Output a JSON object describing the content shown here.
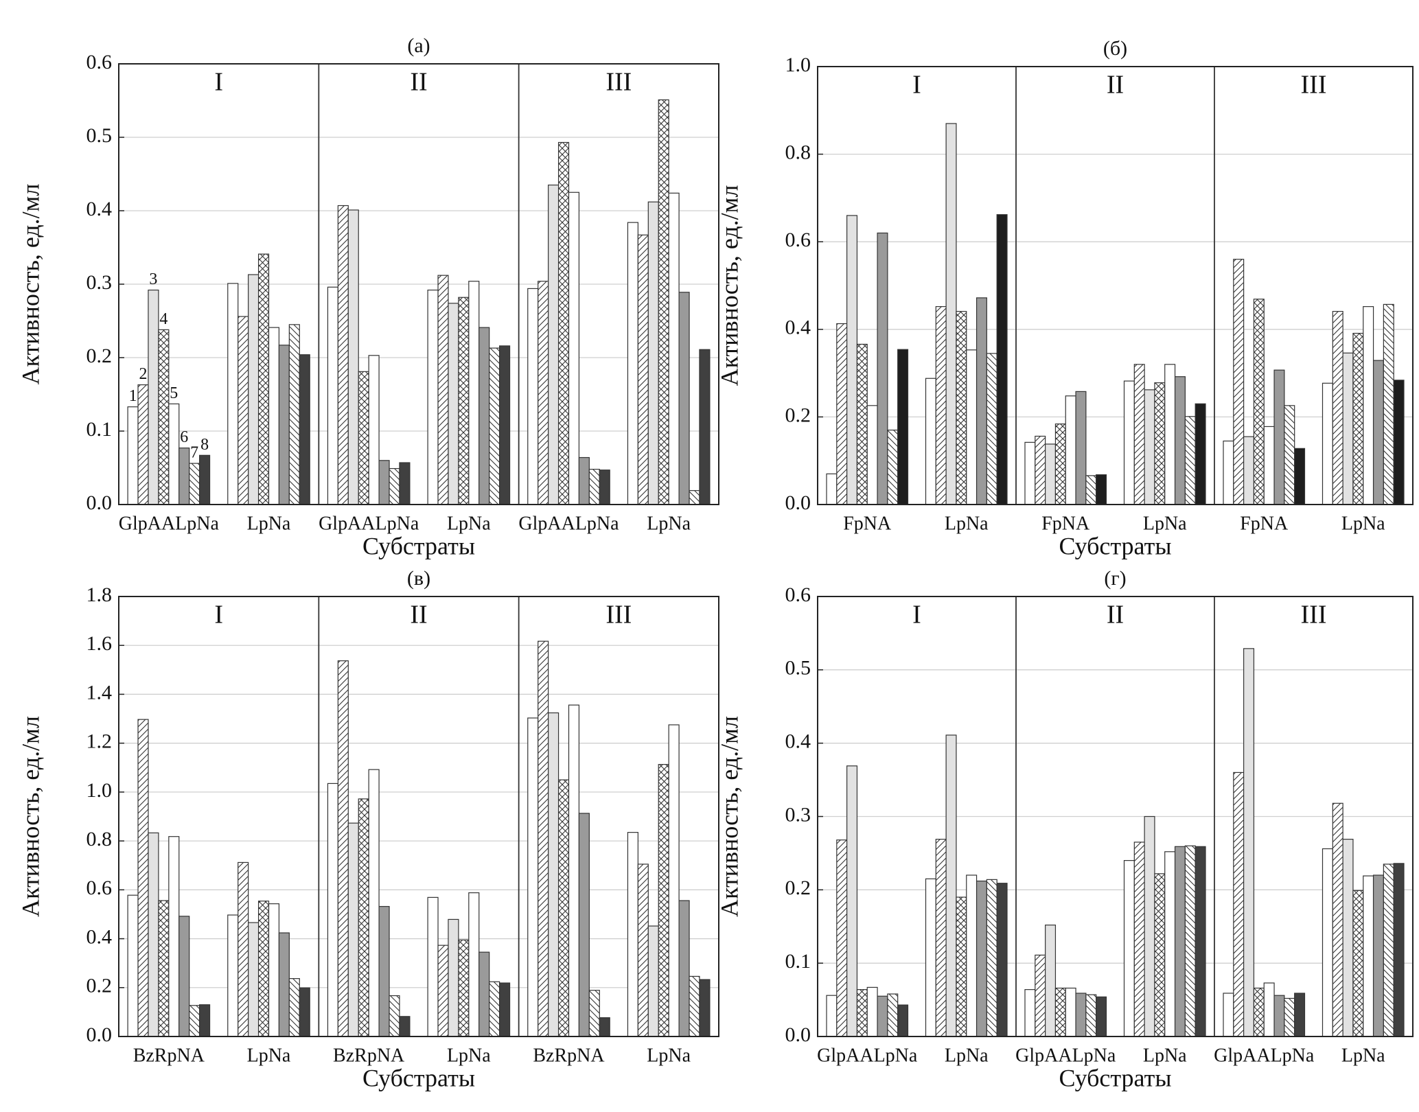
{
  "chart_data": [
    {
      "type": "bar",
      "title": "(a)",
      "xlabel": "Субстраты",
      "ylabel": "Активность, ед./мл",
      "groups": [
        "I",
        "II",
        "III"
      ],
      "categories": [
        "GlpAALpNa",
        "LpNa",
        "GlpAALpNa",
        "LpNa",
        "GlpAALpNa",
        "LpNa"
      ],
      "ylim": [
        0,
        0.6
      ],
      "yticks": [
        {
          "value": 0,
          "label": "0.0"
        },
        0.1,
        0.2,
        0.3,
        0.4,
        0.5,
        0.6
      ],
      "grid": true,
      "series": [
        {
          "name": "1",
          "color": "#ffffff",
          "hatch": "none",
          "values": [
            0.133,
            0.301,
            0.296,
            0.292,
            0.294,
            0.384
          ]
        },
        {
          "name": "2",
          "color": "#ffffff",
          "hatch": "/",
          "values": [
            0.163,
            0.256,
            0.407,
            0.312,
            0.304,
            0.367
          ]
        },
        {
          "name": "3",
          "color": "#e2e2e2",
          "hatch": "none",
          "values": [
            0.292,
            0.313,
            0.401,
            0.274,
            0.435,
            0.412
          ]
        },
        {
          "name": "4",
          "color": "#ffffff",
          "hatch": "x",
          "values": [
            0.238,
            0.341,
            0.181,
            0.282,
            0.493,
            0.551
          ]
        },
        {
          "name": "5",
          "color": "#ffffff",
          "hatch": "none",
          "values": [
            0.137,
            0.241,
            0.203,
            0.304,
            0.425,
            0.424
          ]
        },
        {
          "name": "6",
          "color": "#9a9a9a",
          "hatch": "none",
          "values": [
            0.077,
            0.217,
            0.06,
            0.241,
            0.064,
            0.289
          ]
        },
        {
          "name": "7",
          "color": "#ffffff",
          "hatch": "\\",
          "values": [
            0.056,
            0.245,
            0.049,
            0.213,
            0.048,
            0.019
          ]
        },
        {
          "name": "8",
          "color": "#404040",
          "hatch": "none",
          "values": [
            0.067,
            0.204,
            0.057,
            0.216,
            0.047,
            0.211
          ]
        }
      ]
    },
    {
      "type": "bar",
      "title": "(б)",
      "xlabel": "Субстраты",
      "ylabel": "Активность, ед./мл",
      "groups": [
        "I",
        "II",
        "III"
      ],
      "categories": [
        "FpNA",
        "LpNa",
        "FpNA",
        "LpNa",
        "FpNA",
        "LpNa"
      ],
      "ylim": [
        0,
        1
      ],
      "yticks": [
        {
          "value": 0,
          "label": "0.0"
        },
        0.2,
        0.4,
        0.6,
        0.8,
        {
          "value": 1,
          "label": "1.0"
        }
      ],
      "grid": true,
      "series": [
        {
          "color": "#ffffff",
          "hatch": "none",
          "values": [
            0.07,
            0.288,
            0.142,
            0.282,
            0.145,
            0.277
          ]
        },
        {
          "color": "#ffffff",
          "hatch": "/",
          "values": [
            0.413,
            0.452,
            0.156,
            0.32,
            0.56,
            0.441
          ]
        },
        {
          "color": "#e2e2e2",
          "hatch": "none",
          "values": [
            0.66,
            0.87,
            0.138,
            0.262,
            0.155,
            0.346
          ]
        },
        {
          "color": "#ffffff",
          "hatch": "x",
          "values": [
            0.366,
            0.441,
            0.184,
            0.278,
            0.469,
            0.391
          ]
        },
        {
          "color": "#ffffff",
          "hatch": "none",
          "values": [
            0.226,
            0.353,
            0.248,
            0.32,
            0.178,
            0.452
          ]
        },
        {
          "color": "#9a9a9a",
          "hatch": "none",
          "values": [
            0.62,
            0.472,
            0.258,
            0.292,
            0.307,
            0.329
          ]
        },
        {
          "color": "#ffffff",
          "hatch": "\\",
          "values": [
            0.17,
            0.345,
            0.066,
            0.201,
            0.226,
            0.457
          ]
        },
        {
          "color": "#1e1e1e",
          "hatch": "none",
          "values": [
            0.354,
            0.662,
            0.068,
            0.23,
            0.128,
            0.284
          ]
        }
      ]
    },
    {
      "type": "bar",
      "title": "(в)",
      "xlabel": "Субстраты",
      "ylabel": "Активность, ед./мл",
      "groups": [
        "I",
        "II",
        "III"
      ],
      "categories": [
        "BzRpNA",
        "LpNa",
        "BzRpNA",
        "LpNa",
        "BzRpNA",
        "LpNa"
      ],
      "ylim": [
        0,
        1.8
      ],
      "yticks": [
        {
          "value": 0,
          "label": "0.0"
        },
        0.2,
        0.4,
        0.6,
        0.8,
        {
          "value": 1,
          "label": "1.0"
        },
        1.2,
        1.4,
        1.6,
        1.8
      ],
      "grid": true,
      "series": [
        {
          "color": "#ffffff",
          "hatch": "none",
          "values": [
            0.578,
            0.497,
            1.035,
            0.569,
            1.303,
            0.835
          ]
        },
        {
          "color": "#ffffff",
          "hatch": "/",
          "values": [
            1.297,
            0.712,
            1.537,
            0.373,
            1.617,
            0.705
          ]
        },
        {
          "color": "#e2e2e2",
          "hatch": "none",
          "values": [
            0.833,
            0.466,
            0.873,
            0.479,
            1.324,
            0.452
          ]
        },
        {
          "color": "#ffffff",
          "hatch": "x",
          "values": [
            0.556,
            0.554,
            0.972,
            0.395,
            1.05,
            1.113
          ]
        },
        {
          "color": "#ffffff",
          "hatch": "none",
          "values": [
            0.818,
            0.543,
            1.092,
            0.588,
            1.356,
            1.275
          ]
        },
        {
          "color": "#9a9a9a",
          "hatch": "none",
          "values": [
            0.492,
            0.424,
            0.532,
            0.345,
            0.913,
            0.556
          ]
        },
        {
          "color": "#ffffff",
          "hatch": "\\",
          "values": [
            0.127,
            0.237,
            0.167,
            0.224,
            0.189,
            0.246
          ]
        },
        {
          "color": "#404040",
          "hatch": "none",
          "values": [
            0.13,
            0.199,
            0.082,
            0.219,
            0.077,
            0.233
          ]
        }
      ]
    },
    {
      "type": "bar",
      "title": "(г)",
      "xlabel": "Субстраты",
      "ylabel": "Активность, ед./мл",
      "groups": [
        "I",
        "II",
        "III"
      ],
      "categories": [
        "GlpAALpNa",
        "LpNa",
        "GlpAALpNa",
        "LpNa",
        "GlpAALpNa",
        "LpNa"
      ],
      "ylim": [
        0,
        0.6
      ],
      "yticks": [
        {
          "value": 0,
          "label": "0.0"
        },
        0.1,
        0.2,
        0.3,
        0.4,
        0.5,
        0.6
      ],
      "grid": true,
      "series": [
        {
          "color": "#ffffff",
          "hatch": "none",
          "values": [
            0.056,
            0.215,
            0.064,
            0.24,
            0.059,
            0.256
          ]
        },
        {
          "color": "#ffffff",
          "hatch": "/",
          "values": [
            0.268,
            0.269,
            0.111,
            0.265,
            0.36,
            0.318
          ]
        },
        {
          "color": "#e2e2e2",
          "hatch": "none",
          "values": [
            0.369,
            0.411,
            0.152,
            0.3,
            0.529,
            0.269
          ]
        },
        {
          "color": "#ffffff",
          "hatch": "x",
          "values": [
            0.064,
            0.19,
            0.066,
            0.222,
            0.066,
            0.199
          ]
        },
        {
          "color": "#ffffff",
          "hatch": "none",
          "values": [
            0.067,
            0.22,
            0.066,
            0.252,
            0.073,
            0.219
          ]
        },
        {
          "color": "#9a9a9a",
          "hatch": "none",
          "values": [
            0.055,
            0.212,
            0.059,
            0.259,
            0.056,
            0.22
          ]
        },
        {
          "color": "#ffffff",
          "hatch": "\\",
          "values": [
            0.058,
            0.214,
            0.057,
            0.26,
            0.052,
            0.235
          ]
        },
        {
          "color": "#404040",
          "hatch": "none",
          "values": [
            0.043,
            0.209,
            0.054,
            0.259,
            0.059,
            0.236
          ]
        }
      ]
    }
  ]
}
